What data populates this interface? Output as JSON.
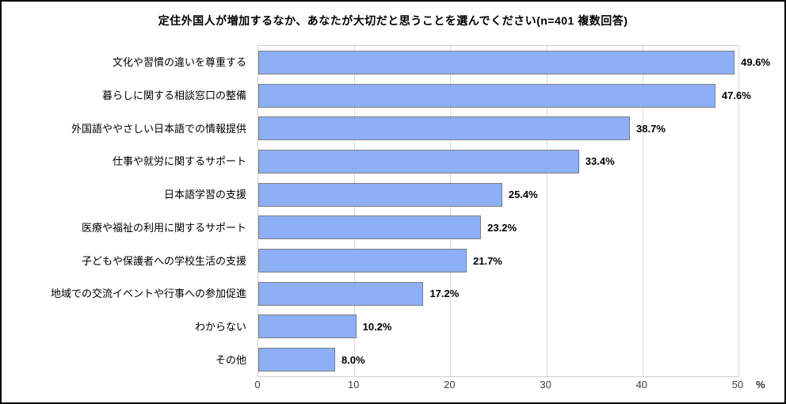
{
  "chart_data": {
    "type": "bar",
    "orientation": "horizontal",
    "title": "定住外国人が増加するなか、あなたが大切だと思うことを選んでください(n=401 複数回答)",
    "categories": [
      "文化や習慣の違いを尊重する",
      "暮らしに関する相談窓口の整備",
      "外国語ややさしい日本語での情報提供",
      "仕事や就労に関するサポート",
      "日本語学習の支援",
      "医療や福祉の利用に関するサポート",
      "子どもや保護者への学校生活の支援",
      "地域での交流イベントや行事への参加促進",
      "わからない",
      "その他"
    ],
    "values": [
      49.6,
      47.6,
      38.7,
      33.4,
      25.4,
      23.2,
      21.7,
      17.2,
      10.2,
      8.0
    ],
    "value_labels": [
      "49.6%",
      "47.6%",
      "38.7%",
      "33.4%",
      "25.4%",
      "23.2%",
      "21.7%",
      "17.2%",
      "10.2%",
      "8.0%"
    ],
    "xlabel": "%",
    "xlim": [
      0,
      50
    ],
    "xticks": [
      0,
      10,
      20,
      30,
      40,
      50
    ],
    "grid": true,
    "legend": false
  },
  "colors": {
    "bar_fill": "#8caff5",
    "bar_border": "#7f7f7f",
    "grid": "#d9d9d9",
    "plot_border": "#cfcfcf",
    "tick_text": "#404040",
    "title_text": "#000000"
  }
}
